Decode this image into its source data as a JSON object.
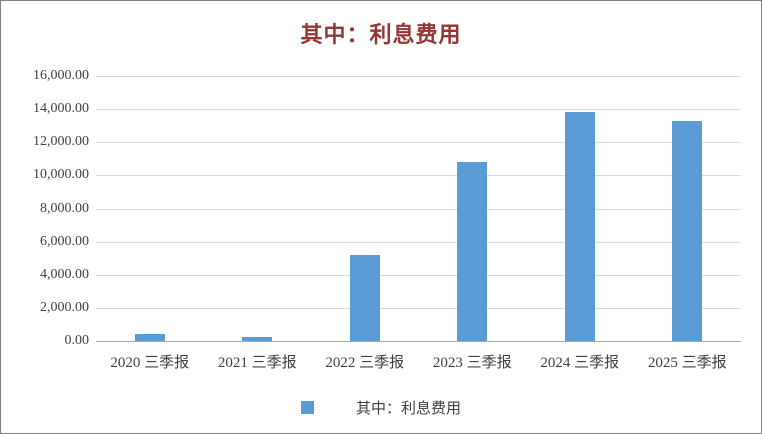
{
  "title": "其中：利息费用",
  "legend": {
    "label": "其中：利息费用",
    "marker_color": "#5b9bd5"
  },
  "colors": {
    "bar": "#5b9bd5",
    "title": "#943634",
    "axis_text": "#404040",
    "gridline": "#d9d9d9",
    "baseline": "#a6a6a6",
    "frame_border": "#7f7f7f"
  },
  "chart_data": {
    "type": "bar",
    "title": "其中：利息费用",
    "categories": [
      "2020 三季报",
      "2021 三季报",
      "2022 三季报",
      "2023 三季报",
      "2024 三季报",
      "2025 三季报"
    ],
    "values": [
      400,
      250,
      5200,
      10800,
      13850,
      13300
    ],
    "series": [
      {
        "name": "其中：利息费用",
        "values": [
          400,
          250,
          5200,
          10800,
          13850,
          13300
        ]
      }
    ],
    "xlabel": "",
    "ylabel": "",
    "ylim": [
      0,
      16000
    ],
    "ytick_step": 2000,
    "ytick_labels": [
      "0.00",
      "2,000.00",
      "4,000.00",
      "6,000.00",
      "8,000.00",
      "10,000.00",
      "12,000.00",
      "14,000.00",
      "16,000.00"
    ],
    "grid": true,
    "legend_position": "bottom",
    "legend_entries": [
      "其中：利息费用"
    ]
  }
}
